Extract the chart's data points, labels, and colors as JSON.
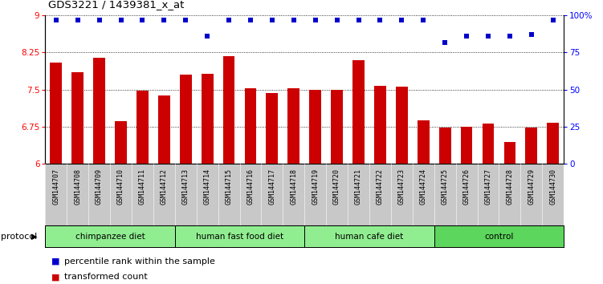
{
  "title": "GDS3221 / 1439381_x_at",
  "samples": [
    "GSM144707",
    "GSM144708",
    "GSM144709",
    "GSM144710",
    "GSM144711",
    "GSM144712",
    "GSM144713",
    "GSM144714",
    "GSM144715",
    "GSM144716",
    "GSM144717",
    "GSM144718",
    "GSM144719",
    "GSM144720",
    "GSM144721",
    "GSM144722",
    "GSM144723",
    "GSM144724",
    "GSM144725",
    "GSM144726",
    "GSM144727",
    "GSM144728",
    "GSM144729",
    "GSM144730"
  ],
  "bar_values": [
    8.05,
    7.85,
    8.15,
    6.85,
    7.47,
    7.37,
    7.8,
    7.82,
    8.18,
    7.53,
    7.42,
    7.53,
    7.5,
    7.5,
    8.1,
    7.58,
    7.55,
    6.87,
    6.72,
    6.75,
    6.8,
    6.43,
    6.72,
    6.82
  ],
  "percentile_values": [
    97,
    97,
    97,
    97,
    97,
    97,
    97,
    86,
    97,
    97,
    97,
    97,
    97,
    97,
    97,
    97,
    97,
    97,
    82,
    86,
    86,
    86,
    87,
    97
  ],
  "bar_color": "#cc0000",
  "percentile_color": "#0000cc",
  "ylim_left": [
    6,
    9
  ],
  "ylim_right": [
    0,
    100
  ],
  "yticks_left": [
    6,
    6.75,
    7.5,
    8.25,
    9
  ],
  "yticks_right": [
    0,
    25,
    50,
    75,
    100
  ],
  "ytick_labels_left": [
    "6",
    "6.75",
    "7.5",
    "8.25",
    "9"
  ],
  "ytick_labels_right": [
    "0",
    "25",
    "50",
    "75",
    "100%"
  ],
  "grid_lines": [
    6.75,
    7.5,
    8.25
  ],
  "groups": [
    {
      "label": "chimpanzee diet",
      "start": 0,
      "end": 6
    },
    {
      "label": "human fast food diet",
      "start": 6,
      "end": 12
    },
    {
      "label": "human cafe diet",
      "start": 12,
      "end": 18
    },
    {
      "label": "control",
      "start": 18,
      "end": 24
    }
  ],
  "group_colors": [
    "#90ee90",
    "#90ee90",
    "#90ee90",
    "#5cd65c"
  ],
  "protocol_label": "protocol",
  "legend_items": [
    {
      "label": "transformed count",
      "color": "#cc0000"
    },
    {
      "label": "percentile rank within the sample",
      "color": "#0000cc"
    }
  ],
  "ticklabel_area_color": "#c8c8c8"
}
